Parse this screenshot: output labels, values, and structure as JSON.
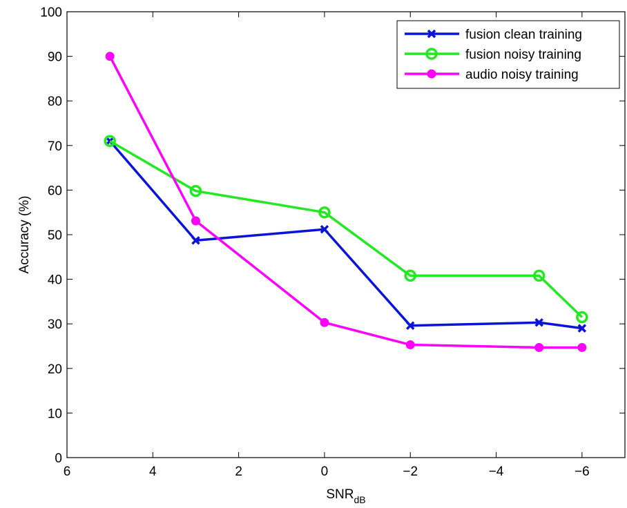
{
  "chart_data": {
    "type": "line",
    "xlabel": "SNR",
    "xlabel_sub": "dB",
    "ylabel": "Accuracy (%)",
    "xlim": [
      6,
      -7
    ],
    "ylim": [
      0,
      100
    ],
    "x_reversed": true,
    "grid": false,
    "legend_position": "top-right",
    "xticks": [
      6,
      4,
      2,
      0,
      -2,
      -4,
      -6
    ],
    "xtick_labels": [
      "6",
      "4",
      "2",
      "0",
      "−2",
      "−4",
      "−6"
    ],
    "yticks": [
      0,
      10,
      20,
      30,
      40,
      50,
      60,
      70,
      80,
      90,
      100
    ],
    "ytick_labels": [
      "0",
      "10",
      "20",
      "30",
      "40",
      "50",
      "60",
      "70",
      "80",
      "90",
      "100"
    ],
    "x": [
      5,
      3,
      0,
      -2,
      -5,
      -6
    ],
    "series": [
      {
        "name": "fusion clean training",
        "color": "#0a14d9",
        "marker": "x",
        "values": [
          71,
          48.7,
          51.2,
          29.6,
          30.3,
          29
        ]
      },
      {
        "name": "fusion noisy training",
        "color": "#22e822",
        "marker": "circle-open",
        "values": [
          71,
          59.8,
          55,
          40.8,
          40.8,
          31.5
        ]
      },
      {
        "name": "audio noisy training",
        "color": "#ff00ff",
        "marker": "circle-filled",
        "values": [
          90,
          53.1,
          30.3,
          25.3,
          24.7,
          24.7
        ]
      }
    ]
  }
}
